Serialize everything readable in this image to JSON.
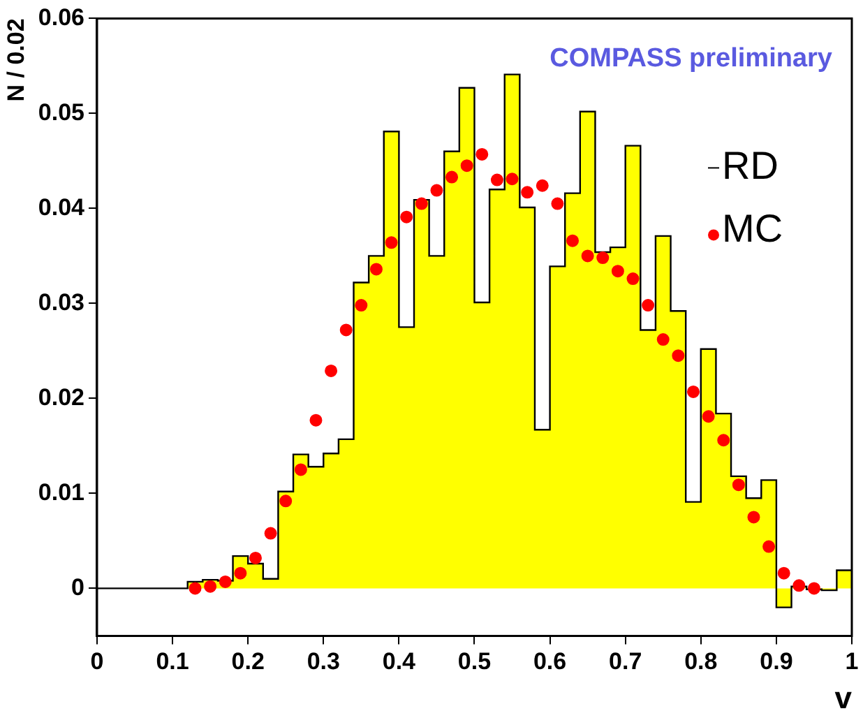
{
  "chart_data": {
    "type": "histogram",
    "xlabel": "v",
    "ylabel": "N / 0.02",
    "annotations": [
      "COMPASS preliminary"
    ],
    "bins": [
      0,
      0.02,
      0.04,
      0.06,
      0.08,
      0.1,
      0.12,
      0.14,
      0.16,
      0.18,
      0.2,
      0.22,
      0.24,
      0.26,
      0.28,
      0.3,
      0.32,
      0.34,
      0.36,
      0.38,
      0.4,
      0.42,
      0.44,
      0.46,
      0.48,
      0.5,
      0.52,
      0.54,
      0.56,
      0.58,
      0.6,
      0.62,
      0.64,
      0.66,
      0.68,
      0.7,
      0.72,
      0.74,
      0.76,
      0.78,
      0.8,
      0.82,
      0.84,
      0.86,
      0.88,
      0.9,
      0.92,
      0.94,
      0.96,
      0.98,
      1
    ],
    "series": [
      {
        "name": "RD",
        "type": "histogram",
        "color": "#ffff00",
        "values": [
          0,
          0,
          0,
          0,
          0,
          0,
          0.0007,
          0.0009,
          0.0008,
          0.0034,
          0.0026,
          0.001,
          0.0102,
          0.0141,
          0.0128,
          0.0142,
          0.0157,
          0.0322,
          0.035,
          0.0481,
          0.0275,
          0.0409,
          0.035,
          0.046,
          0.0527,
          0.0301,
          0.042,
          0.0541,
          0.0401,
          0.0167,
          0.0339,
          0.0416,
          0.0502,
          0.0354,
          0.0359,
          0.0466,
          0.0272,
          0.0371,
          0.0292,
          0.0091,
          0.0252,
          0.0184,
          0.0118,
          0.0095,
          0.0114,
          -0.002,
          0.0002,
          -0.0001,
          -0.0002,
          0.0019
        ]
      },
      {
        "name": "MC",
        "type": "scatter",
        "color": "#ff0000",
        "marker": "circle",
        "x": [
          0.13,
          0.15,
          0.17,
          0.19,
          0.21,
          0.23,
          0.25,
          0.27,
          0.29,
          0.31,
          0.33,
          0.35,
          0.37,
          0.39,
          0.41,
          0.43,
          0.45,
          0.47,
          0.49,
          0.51,
          0.53,
          0.55,
          0.57,
          0.59,
          0.61,
          0.63,
          0.65,
          0.67,
          0.69,
          0.71,
          0.73,
          0.75,
          0.77,
          0.79,
          0.81,
          0.83,
          0.85,
          0.87,
          0.89,
          0.91,
          0.93,
          0.95
        ],
        "values": [
          0,
          0.0002,
          0.0007,
          0.0016,
          0.0032,
          0.0058,
          0.0092,
          0.0125,
          0.0177,
          0.0229,
          0.0272,
          0.0298,
          0.0336,
          0.0364,
          0.0391,
          0.0405,
          0.0419,
          0.0433,
          0.0445,
          0.0457,
          0.043,
          0.0431,
          0.0417,
          0.0424,
          0.0405,
          0.0366,
          0.035,
          0.0348,
          0.0334,
          0.0326,
          0.0298,
          0.0262,
          0.0245,
          0.0207,
          0.0181,
          0.0156,
          0.0109,
          0.0075,
          0.0044,
          0.0016,
          0.0003,
          0
        ]
      }
    ],
    "xlim": [
      0,
      1
    ],
    "xticks": [
      0,
      0.1,
      0.2,
      0.3,
      0.4,
      0.5,
      0.6,
      0.7,
      0.8,
      0.9,
      1
    ],
    "ylim": [
      -0.005,
      0.06
    ],
    "yticks": [
      0,
      0.01,
      0.02,
      0.03,
      0.04,
      0.05,
      0.06
    ],
    "grid": false,
    "legend": "top right"
  }
}
